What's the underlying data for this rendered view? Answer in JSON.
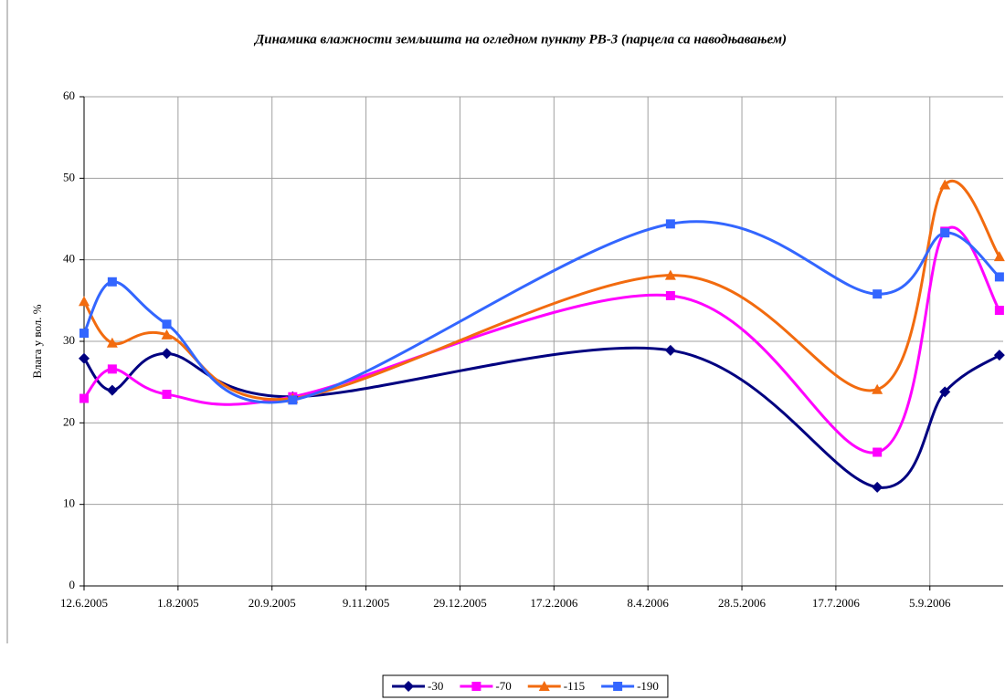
{
  "chart_data": {
    "type": "line",
    "title": "Динамика влажности земљишта на огледном пункту РВ-3 (парцела са наводњавањем)",
    "ylabel": "Влага у вол. %",
    "x": [
      "12.6.2005",
      "27.6.2005",
      "26.7.2005",
      "1.10.2005",
      "20.4.2006",
      "8.8.2006",
      "13.9.2006",
      "12.10.2006"
    ],
    "xlim": [
      "12.6.2005",
      "14.10.2006"
    ],
    "xticks": [
      "12.6.2005",
      "1.8.2005",
      "20.9.2005",
      "9.11.2005",
      "29.12.2005",
      "17.2.2006",
      "8.4.2006",
      "28.5.2006",
      "17.7.2006",
      "5.9.2006"
    ],
    "ylim": [
      0,
      60
    ],
    "yticks": [
      0,
      10,
      20,
      30,
      40,
      50,
      60
    ],
    "grid": true,
    "smooth": true,
    "legend": "bottom",
    "series": [
      {
        "name": "-30",
        "color": "#000080",
        "marker": "diamond",
        "values": [
          27.9,
          24,
          28.5,
          23.2,
          28.9,
          12.1,
          23.8,
          28.3
        ]
      },
      {
        "name": "-70",
        "color": "#ff00ff",
        "marker": "square",
        "values": [
          23,
          26.6,
          23.5,
          23.2,
          35.6,
          16.4,
          43.5,
          33.8
        ]
      },
      {
        "name": "-115",
        "color": "#f26b0f",
        "marker": "triangle",
        "values": [
          34.9,
          29.8,
          30.8,
          23,
          38.1,
          24.1,
          49.2,
          40.4
        ]
      },
      {
        "name": "-190",
        "color": "#3366ff",
        "marker": "square",
        "values": [
          31,
          37.3,
          32.1,
          22.8,
          44.4,
          35.8,
          43.3,
          37.9
        ]
      }
    ]
  }
}
